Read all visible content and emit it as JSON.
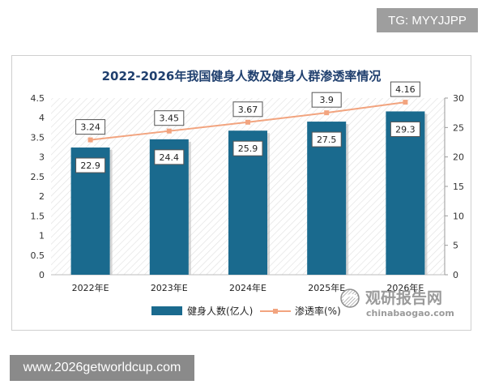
{
  "badges": {
    "top_right": "TG: MYYJJPP",
    "bottom_left": "www.2026getworldcup.com"
  },
  "watermark": {
    "brand": "观研报告网",
    "url": "chinabaogao.com"
  },
  "colors": {
    "bar": "#1a6a8e",
    "line": "#f2a47f",
    "title": "#1f3f6e",
    "plot_bg_hatch": "#dcdcdc"
  },
  "chart_data": {
    "type": "bar",
    "title": "2022-2026年我国健身人数及健身人群渗透率情况",
    "categories": [
      "2022年E",
      "2023年E",
      "2024年E",
      "2025年E",
      "2026年E"
    ],
    "series": [
      {
        "name": "健身人数(亿人)",
        "type": "bar",
        "axis": "left",
        "values": [
          3.24,
          3.45,
          3.67,
          3.9,
          4.16
        ]
      },
      {
        "name": "渗透率(%)",
        "type": "line",
        "axis": "right",
        "values": [
          22.9,
          24.4,
          25.9,
          27.5,
          29.3
        ]
      }
    ],
    "y_left": {
      "min": 0,
      "max": 4.5,
      "ticks": [
        "0",
        "0.5",
        "1",
        "1.5",
        "2",
        "2.5",
        "3",
        "3.5",
        "4",
        "4.5"
      ]
    },
    "y_right": {
      "min": 0,
      "max": 30,
      "ticks": [
        "0",
        "5",
        "10",
        "15",
        "20",
        "25",
        "30"
      ]
    },
    "legend_position": "bottom",
    "grid": false
  }
}
